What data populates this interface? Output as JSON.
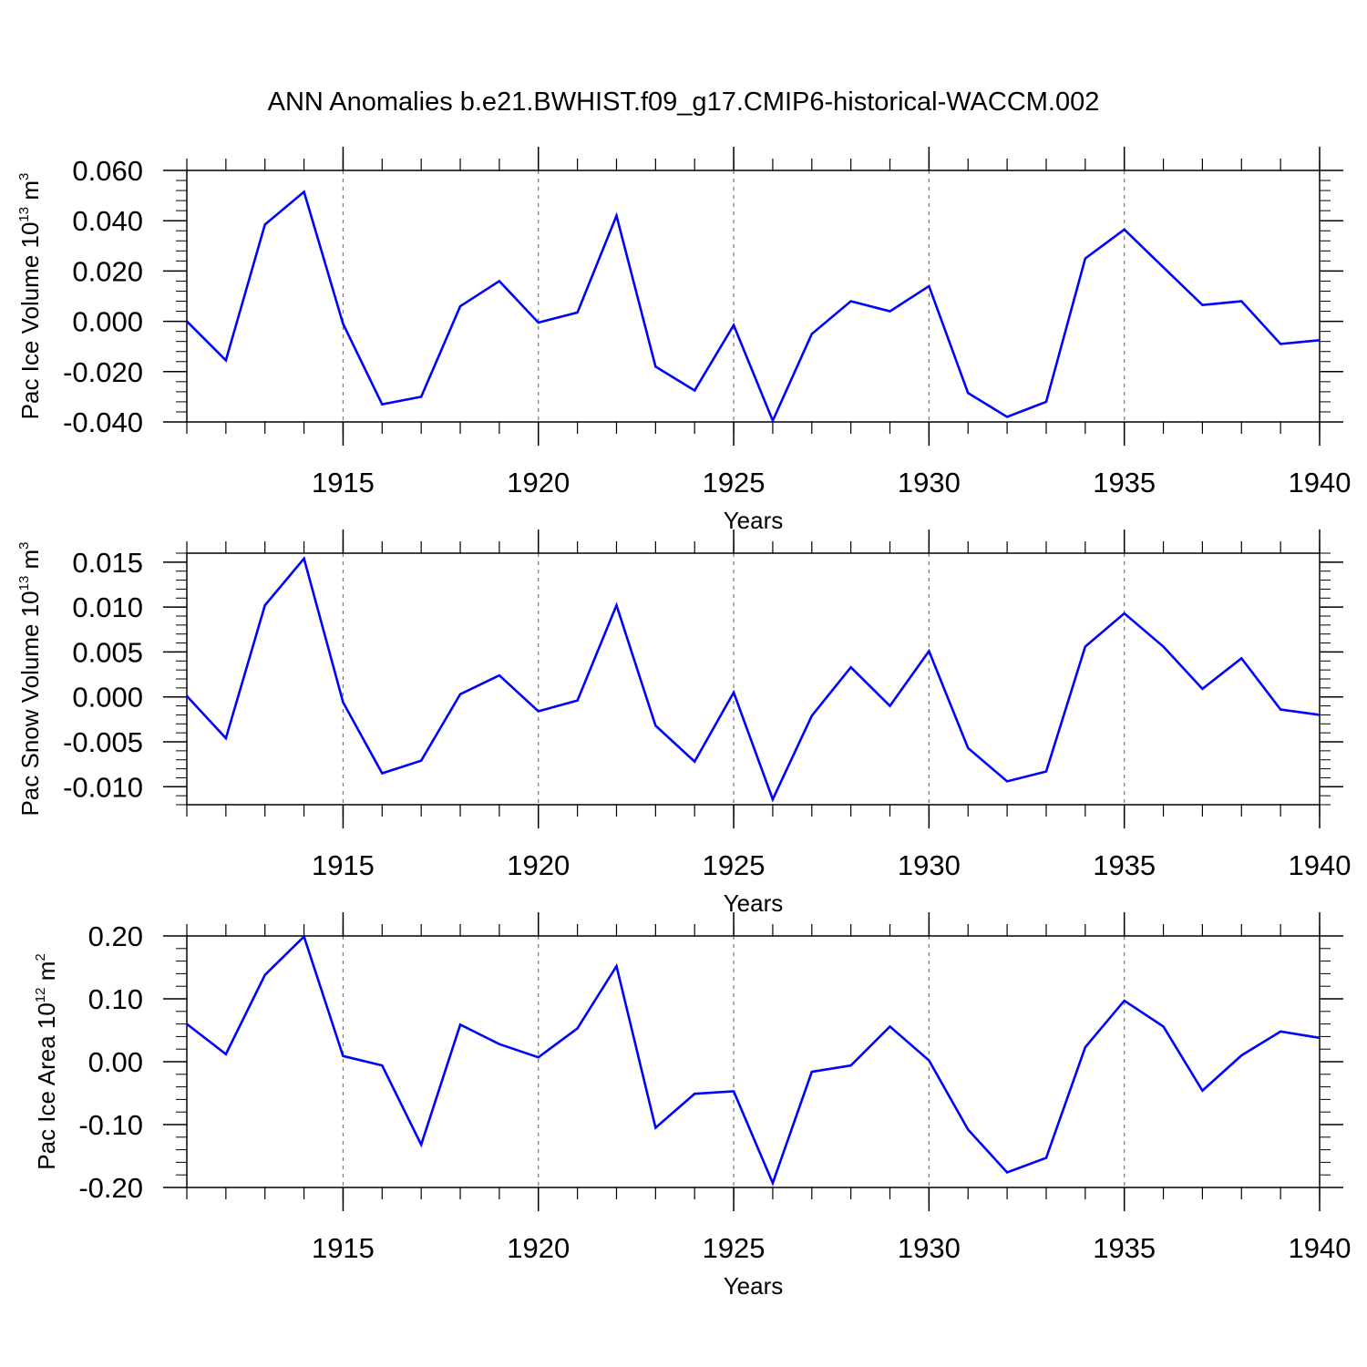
{
  "title": "ANN Anomalies b.e21.BWHIST.f09_g17.CMIP6-historical-WACCM.002",
  "line_color": "#0000ff",
  "chart_data": [
    {
      "type": "line",
      "ylabel": "Pac Ice Volume 10",
      "ylabel_exp": "13",
      "ylabel_unit": " m",
      "ylabel_unit_exp": "3",
      "xlabel": "Years",
      "ylim": [
        -0.04,
        0.06
      ],
      "xlim": [
        1911,
        1940
      ],
      "yticks": [
        -0.04,
        -0.02,
        0.0,
        0.02,
        0.04,
        0.06
      ],
      "ytick_labels": [
        "-0.040",
        "-0.020",
        "0.000",
        "0.020",
        "0.040",
        "0.060"
      ],
      "xticks": [
        1915,
        1920,
        1925,
        1930,
        1935,
        1940
      ],
      "xtick_labels": [
        "1915",
        "1920",
        "1925",
        "1930",
        "1935",
        "1940"
      ],
      "grid": "vertical dashed at major x ticks",
      "x": [
        1911,
        1912,
        1913,
        1914,
        1915,
        1916,
        1917,
        1918,
        1919,
        1920,
        1921,
        1922,
        1923,
        1924,
        1925,
        1926,
        1927,
        1928,
        1929,
        1930,
        1931,
        1932,
        1933,
        1934,
        1935,
        1936,
        1937,
        1938,
        1939,
        1940
      ],
      "y": [
        0.0,
        -0.0155,
        0.0385,
        0.0515,
        -0.001,
        -0.033,
        -0.03,
        0.006,
        0.016,
        -0.0005,
        0.0035,
        0.042,
        -0.018,
        -0.0275,
        -0.0015,
        -0.0395,
        -0.005,
        0.008,
        0.004,
        0.014,
        -0.0285,
        -0.038,
        -0.032,
        0.025,
        0.0365,
        0.0215,
        0.0065,
        0.008,
        -0.009,
        -0.0075
      ]
    },
    {
      "type": "line",
      "ylabel": "Pac Snow Volume 10",
      "ylabel_exp": "13",
      "ylabel_unit": " m",
      "ylabel_unit_exp": "3",
      "xlabel": "Years",
      "ylim": [
        -0.012,
        0.016
      ],
      "xlim": [
        1911,
        1940
      ],
      "yticks": [
        -0.01,
        -0.005,
        0.0,
        0.005,
        0.01,
        0.015
      ],
      "ytick_labels": [
        "-0.010",
        "-0.005",
        "0.000",
        "0.005",
        "0.010",
        "0.015"
      ],
      "xticks": [
        1915,
        1920,
        1925,
        1930,
        1935,
        1940
      ],
      "xtick_labels": [
        "1915",
        "1920",
        "1925",
        "1930",
        "1935",
        "1940"
      ],
      "grid": "vertical dashed at major x ticks",
      "x": [
        1911,
        1912,
        1913,
        1914,
        1915,
        1916,
        1917,
        1918,
        1919,
        1920,
        1921,
        1922,
        1923,
        1924,
        1925,
        1926,
        1927,
        1928,
        1929,
        1930,
        1931,
        1932,
        1933,
        1934,
        1935,
        1936,
        1937,
        1938,
        1939,
        1940
      ],
      "y": [
        0.0001,
        -0.0046,
        0.0102,
        0.0154,
        -0.0006,
        -0.0085,
        -0.0071,
        0.0003,
        0.0024,
        -0.0016,
        -0.0004,
        0.0102,
        -0.0032,
        -0.0072,
        0.0005,
        -0.0114,
        -0.0021,
        0.0033,
        -0.001,
        0.0051,
        -0.0057,
        -0.0094,
        -0.0083,
        0.0056,
        0.0093,
        0.0056,
        0.0009,
        0.0043,
        -0.0014,
        -0.002
      ]
    },
    {
      "type": "line",
      "ylabel": "Pac Ice Area 10",
      "ylabel_exp": "12",
      "ylabel_unit": " m",
      "ylabel_unit_exp": "2",
      "xlabel": "Years",
      "ylim": [
        -0.2,
        0.2
      ],
      "xlim": [
        1911,
        1940
      ],
      "yticks": [
        -0.2,
        -0.1,
        0.0,
        0.1,
        0.2
      ],
      "ytick_labels": [
        "-0.20",
        "-0.10",
        "0.00",
        "0.10",
        "0.20"
      ],
      "xticks": [
        1915,
        1920,
        1925,
        1930,
        1935,
        1940
      ],
      "xtick_labels": [
        "1915",
        "1920",
        "1925",
        "1930",
        "1935",
        "1940"
      ],
      "grid": "vertical dashed at major x ticks",
      "x": [
        1911,
        1912,
        1913,
        1914,
        1915,
        1916,
        1917,
        1918,
        1919,
        1920,
        1921,
        1922,
        1923,
        1924,
        1925,
        1926,
        1927,
        1928,
        1929,
        1930,
        1931,
        1932,
        1933,
        1934,
        1935,
        1936,
        1937,
        1938,
        1939,
        1940
      ],
      "y": [
        0.06,
        0.012,
        0.138,
        0.199,
        0.009,
        -0.006,
        -0.132,
        0.059,
        0.028,
        0.007,
        0.053,
        0.152,
        -0.105,
        -0.051,
        -0.047,
        -0.193,
        -0.016,
        -0.006,
        0.056,
        0.002,
        -0.108,
        -0.176,
        -0.153,
        0.023,
        0.097,
        0.056,
        -0.046,
        0.01,
        0.048,
        0.038
      ]
    }
  ]
}
